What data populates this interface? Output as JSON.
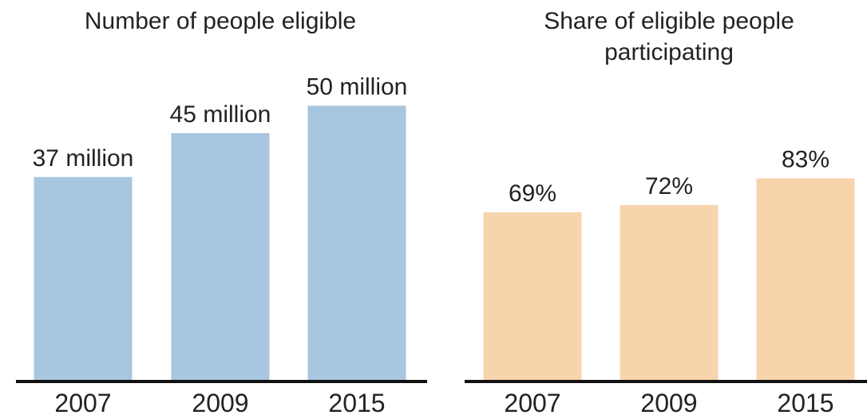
{
  "chart_data": [
    {
      "type": "bar",
      "title": "Number of people eligible",
      "categories": [
        "2007",
        "2009",
        "2015"
      ],
      "values": [
        37,
        45,
        50
      ],
      "data_labels": [
        "37 million",
        "45 million",
        "50 million"
      ],
      "ylim": [
        0,
        62
      ],
      "color": "#a9c6e0"
    },
    {
      "type": "bar",
      "title_lines": [
        "Share of eligible people",
        "participating"
      ],
      "categories": [
        "2007",
        "2009",
        "2015"
      ],
      "values": [
        69,
        72,
        83
      ],
      "data_labels": [
        "69%",
        "72%",
        "83%"
      ],
      "ylim": [
        0,
        140
      ],
      "color": "#f8d4ad"
    }
  ]
}
